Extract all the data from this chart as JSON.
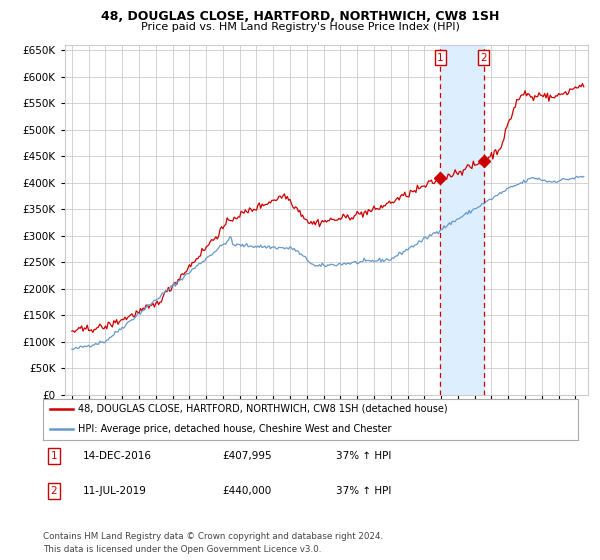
{
  "title1": "48, DOUGLAS CLOSE, HARTFORD, NORTHWICH, CW8 1SH",
  "title2": "Price paid vs. HM Land Registry's House Price Index (HPI)",
  "legend_line1": "48, DOUGLAS CLOSE, HARTFORD, NORTHWICH, CW8 1SH (detached house)",
  "legend_line2": "HPI: Average price, detached house, Cheshire West and Chester",
  "annotation1_label": "1",
  "annotation1_date": "14-DEC-2016",
  "annotation1_price": "£407,995",
  "annotation1_hpi": "37% ↑ HPI",
  "annotation2_label": "2",
  "annotation2_date": "11-JUL-2019",
  "annotation2_price": "£440,000",
  "annotation2_hpi": "37% ↑ HPI",
  "footnote": "Contains HM Land Registry data © Crown copyright and database right 2024.\nThis data is licensed under the Open Government Licence v3.0.",
  "red_color": "#cc0000",
  "blue_color": "#6699cc",
  "shade_color": "#ddeeff",
  "grid_color": "#cccccc",
  "bg_color": "#ffffff",
  "ylim": [
    0,
    660000
  ],
  "yticks": [
    0,
    50000,
    100000,
    150000,
    200000,
    250000,
    300000,
    350000,
    400000,
    450000,
    500000,
    550000,
    600000,
    650000
  ],
  "sale1_year": 2016.96,
  "sale1_value": 407995,
  "sale2_year": 2019.53,
  "sale2_value": 440000,
  "xlim_left": 1994.58,
  "xlim_right": 2025.75
}
